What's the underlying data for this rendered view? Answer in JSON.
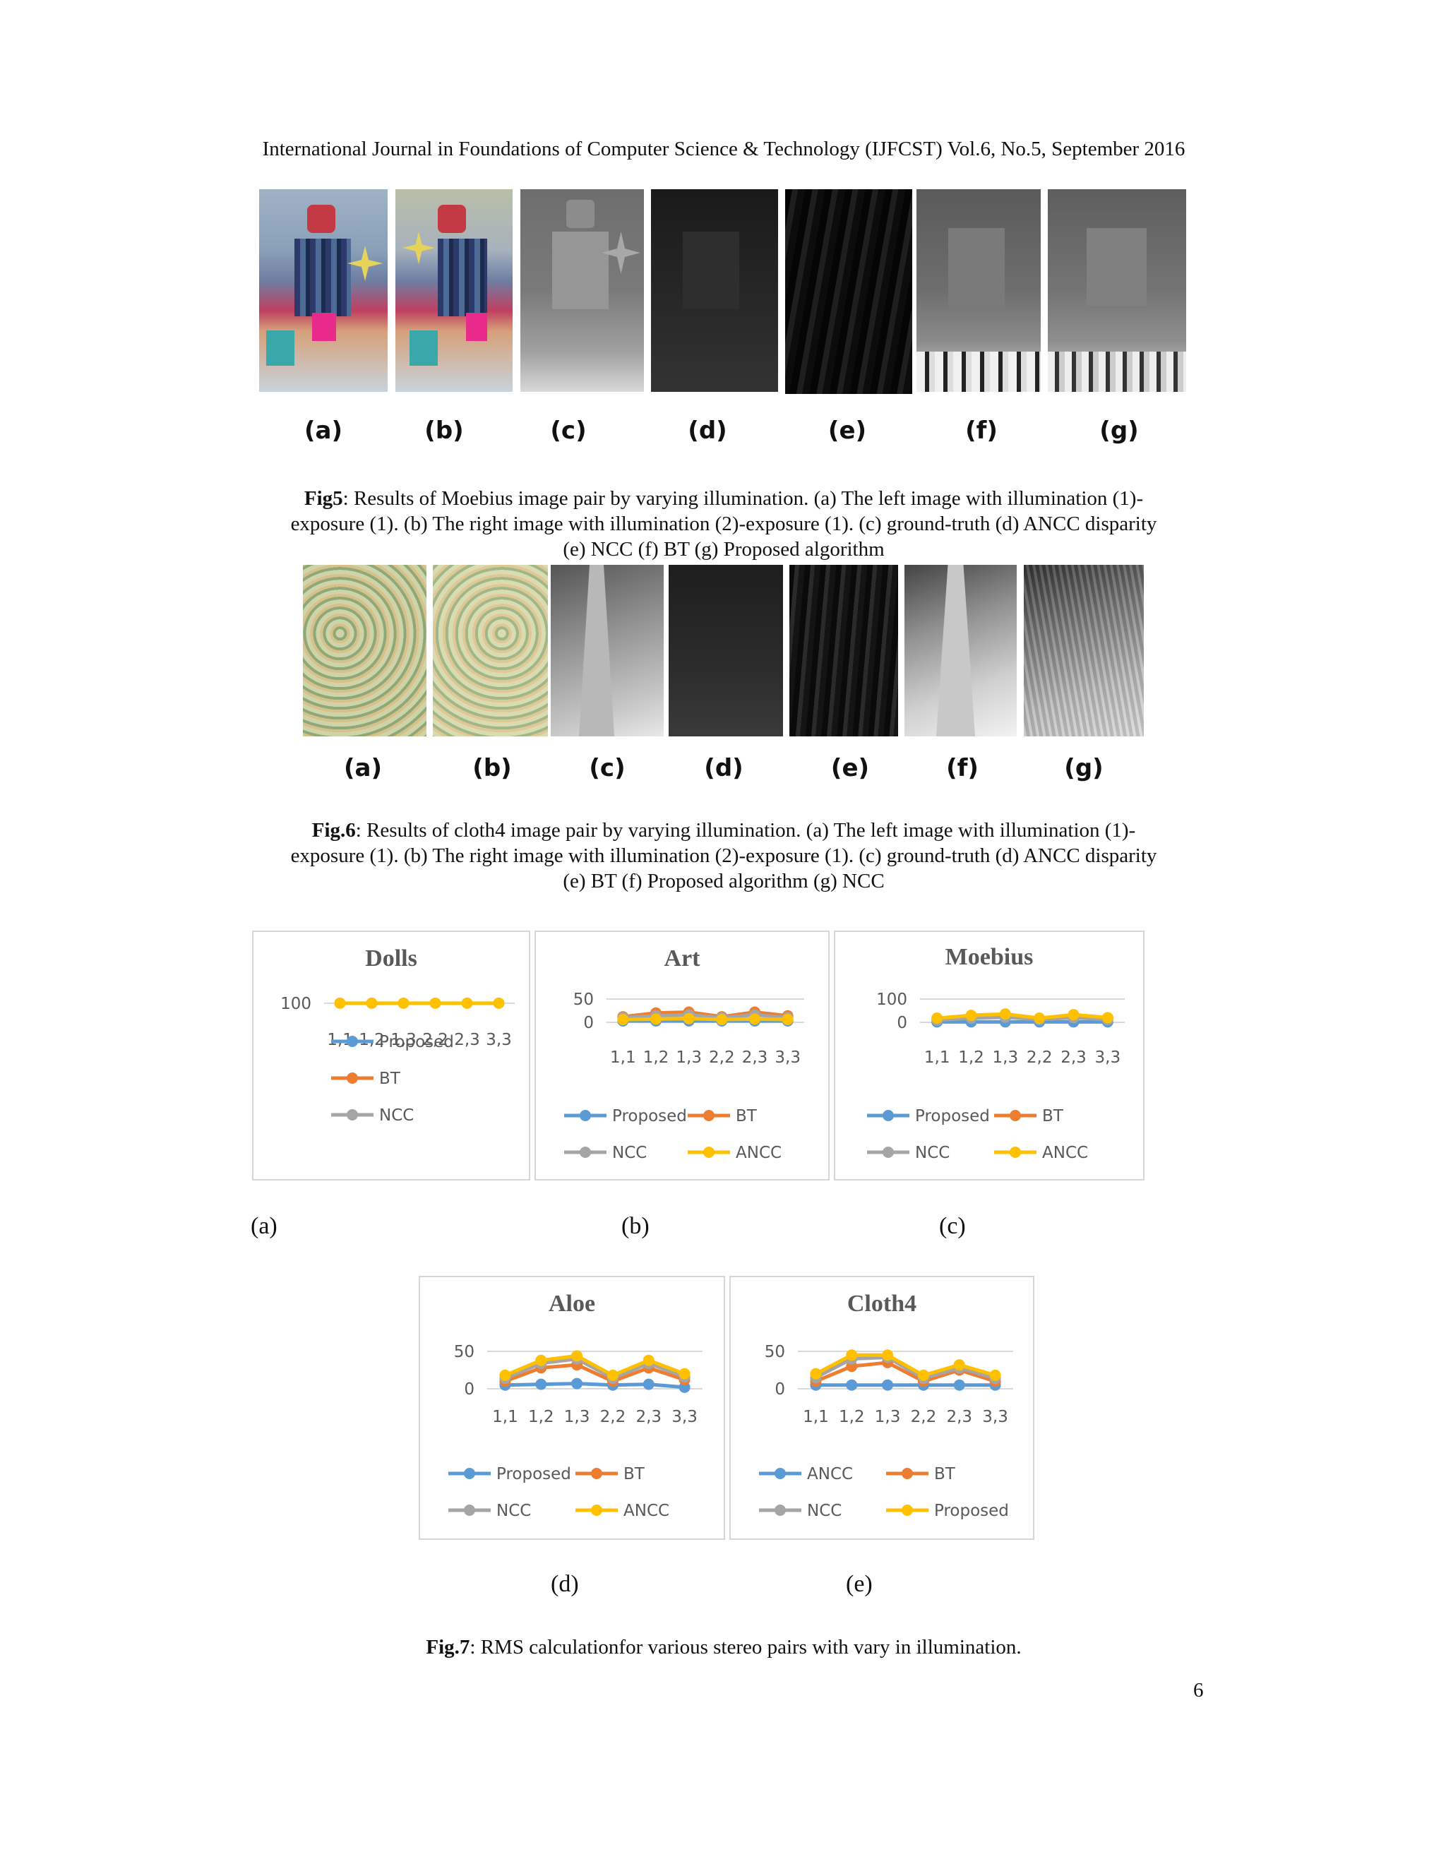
{
  "header": "International Journal in Foundations of Computer Science & Technology (IJFCST) Vol.6, No.5, September 2016",
  "fig5": {
    "panel_labels": [
      "(a)",
      "(b)",
      "(c)",
      "(d)",
      "(e)",
      "(f)",
      "(g)"
    ],
    "caption_bold": "Fig5",
    "caption_line1": ": Results of Moebius image pair by varying illumination. (a) The left image with illumination (1)-",
    "caption_line2": "exposure (1). (b) The right image with illumination (2)-exposure (1). (c) ground-truth (d) ANCC disparity",
    "caption_line3": "(e) NCC (f) BT (g) Proposed algorithm"
  },
  "fig6": {
    "panel_labels": [
      "(a)",
      "(b)",
      "(c)",
      "(d)",
      "(e)",
      "(f)",
      "(g)"
    ],
    "caption_bold": "Fig.6",
    "caption_line1": ": Results of cloth4 image pair by varying illumination. (a) The left image with illumination (1)-",
    "caption_line2": "exposure (1). (b) The right image with illumination (2)-exposure (1). (c) ground-truth (d) ANCC disparity",
    "caption_line3": "(e) BT (f) Proposed algorithm (g) NCC"
  },
  "fig7": {
    "sub_labels": [
      "(a)",
      "(b)",
      "(c)",
      "(d)",
      "(e)"
    ],
    "caption_bold": "Fig.7",
    "caption_text": ": RMS calculationfor various stereo pairs with vary in illumination."
  },
  "chart_data": [
    {
      "type": "line",
      "title": "Dolls",
      "categories": [
        "1,1",
        "1,2",
        "1,3",
        "2,2",
        "2,3",
        "3,3"
      ],
      "yticks": [
        100
      ],
      "ylim": [
        0,
        120
      ],
      "legend": "bottom",
      "series": [
        {
          "name": "Proposed",
          "color": "#5b9bd5",
          "values": [
            100,
            100,
            100,
            100,
            100,
            100
          ],
          "hidden": true
        },
        {
          "name": "BT",
          "color": "#ed7d31",
          "values": [
            100,
            100,
            100,
            100,
            100,
            100
          ],
          "hidden": true
        },
        {
          "name": "NCC",
          "color": "#a5a5a5",
          "values": [
            100,
            100,
            100,
            100,
            100,
            100
          ],
          "hidden": true
        },
        {
          "name": "",
          "color": "#ffc000",
          "values": [
            100,
            100,
            100,
            100,
            100,
            100
          ]
        }
      ]
    },
    {
      "type": "line",
      "title": "Art",
      "categories": [
        "1,1",
        "1,2",
        "1,3",
        "2,2",
        "2,3",
        "3,3"
      ],
      "yticks": [
        0,
        50
      ],
      "ylim": [
        0,
        50
      ],
      "legend": "bottom",
      "series": [
        {
          "name": "Proposed",
          "color": "#5b9bd5",
          "values": [
            3,
            3,
            3,
            3,
            3,
            3
          ]
        },
        {
          "name": "BT",
          "color": "#ed7d31",
          "values": [
            12,
            20,
            22,
            12,
            22,
            14
          ]
        },
        {
          "name": "NCC",
          "color": "#a5a5a5",
          "values": [
            10,
            14,
            16,
            10,
            16,
            10
          ]
        },
        {
          "name": "ANCC",
          "color": "#ffc000",
          "values": [
            6,
            7,
            8,
            6,
            7,
            6
          ]
        }
      ]
    },
    {
      "type": "line",
      "title": "Moebius",
      "categories": [
        "1,1",
        "1,2",
        "1,3",
        "2,2",
        "2,3",
        "3,3"
      ],
      "yticks": [
        0,
        100
      ],
      "ylim": [
        0,
        100
      ],
      "legend": "bottom",
      "series": [
        {
          "name": "Proposed",
          "color": "#5b9bd5",
          "values": [
            2,
            2,
            2,
            2,
            2,
            2
          ]
        },
        {
          "name": "BT",
          "color": "#ed7d31",
          "values": [
            15,
            25,
            30,
            15,
            28,
            18
          ]
        },
        {
          "name": "NCC",
          "color": "#a5a5a5",
          "values": [
            10,
            18,
            22,
            12,
            20,
            12
          ]
        },
        {
          "name": "ANCC",
          "color": "#ffc000",
          "values": [
            18,
            30,
            36,
            18,
            33,
            20
          ]
        }
      ]
    },
    {
      "type": "line",
      "title": "Aloe",
      "categories": [
        "1,1",
        "1,2",
        "1,3",
        "2,2",
        "2,3",
        "3,3"
      ],
      "yticks": [
        0,
        50
      ],
      "ylim": [
        0,
        50
      ],
      "legend": "bottom",
      "series": [
        {
          "name": "Proposed",
          "color": "#5b9bd5",
          "values": [
            5,
            6,
            7,
            5,
            6,
            2
          ]
        },
        {
          "name": "BT",
          "color": "#ed7d31",
          "values": [
            10,
            28,
            32,
            10,
            28,
            12
          ]
        },
        {
          "name": "NCC",
          "color": "#a5a5a5",
          "values": [
            14,
            34,
            40,
            14,
            34,
            16
          ]
        },
        {
          "name": "ANCC",
          "color": "#ffc000",
          "values": [
            18,
            38,
            44,
            18,
            38,
            20
          ]
        }
      ]
    },
    {
      "type": "line",
      "title": "Cloth4",
      "categories": [
        "1,1",
        "1,2",
        "1,3",
        "2,2",
        "2,3",
        "3,3"
      ],
      "yticks": [
        0,
        50
      ],
      "ylim": [
        0,
        50
      ],
      "legend": "bottom",
      "series": [
        {
          "name": "ANCC",
          "color": "#5b9bd5",
          "values": [
            5,
            5,
            5,
            5,
            5,
            5
          ]
        },
        {
          "name": "BT",
          "color": "#ed7d31",
          "values": [
            10,
            30,
            35,
            10,
            25,
            10
          ]
        },
        {
          "name": "NCC",
          "color": "#a5a5a5",
          "values": [
            15,
            40,
            42,
            14,
            28,
            14
          ]
        },
        {
          "name": "Proposed",
          "color": "#ffc000",
          "values": [
            20,
            45,
            45,
            18,
            32,
            18
          ]
        }
      ]
    }
  ],
  "page_number": "6"
}
